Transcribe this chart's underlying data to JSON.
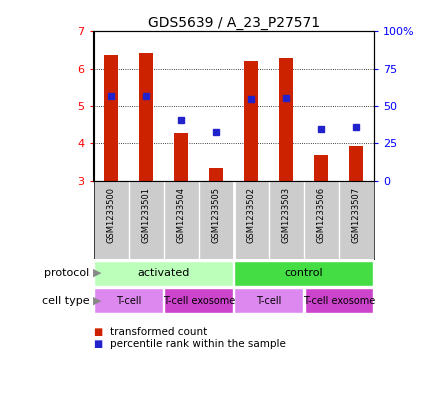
{
  "title": "GDS5639 / A_23_P27571",
  "samples": [
    "GSM1233500",
    "GSM1233501",
    "GSM1233504",
    "GSM1233505",
    "GSM1233502",
    "GSM1233503",
    "GSM1233506",
    "GSM1233507"
  ],
  "transformed_counts": [
    6.38,
    6.42,
    4.28,
    3.33,
    6.2,
    6.29,
    3.68,
    3.93
  ],
  "percentile_ranks": [
    5.28,
    5.28,
    4.62,
    4.3,
    5.18,
    5.22,
    4.4,
    4.45
  ],
  "ylim": [
    3,
    7
  ],
  "yticks": [
    3,
    4,
    5,
    6,
    7
  ],
  "right_yticks": [
    0,
    25,
    50,
    75,
    100
  ],
  "bar_color": "#cc2200",
  "marker_color": "#2222cc",
  "title_fontsize": 10,
  "protocol_groups": [
    {
      "label": "activated",
      "start": 0,
      "end": 4,
      "color": "#bbffbb"
    },
    {
      "label": "control",
      "start": 4,
      "end": 8,
      "color": "#44dd44"
    }
  ],
  "cell_type_groups": [
    {
      "label": "T-cell",
      "start": 0,
      "end": 2,
      "color": "#dd88ee"
    },
    {
      "label": "T-cell exosome",
      "start": 2,
      "end": 4,
      "color": "#cc44cc"
    },
    {
      "label": "T-cell",
      "start": 4,
      "end": 6,
      "color": "#dd88ee"
    },
    {
      "label": "T-cell exosome",
      "start": 6,
      "end": 8,
      "color": "#cc44cc"
    }
  ],
  "legend_red_label": "transformed count",
  "legend_blue_label": "percentile rank within the sample",
  "bg_color": "#cccccc",
  "plot_bg": "#ffffff",
  "label_protocol": "protocol",
  "label_celltype": "cell type",
  "bar_width": 0.4
}
